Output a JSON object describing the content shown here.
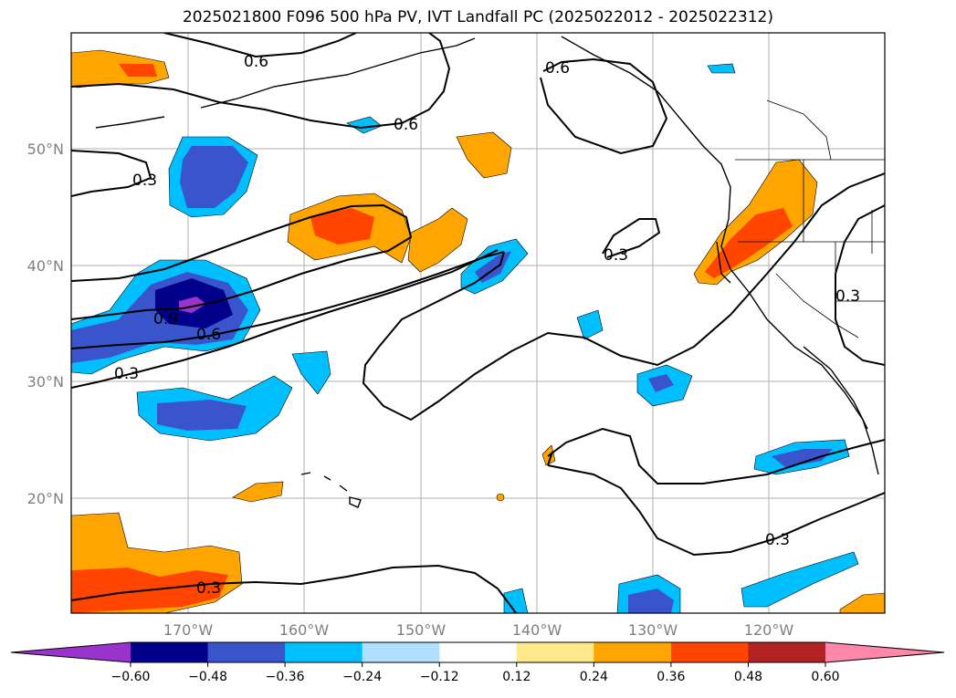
{
  "title": "2025021800 F096 500 hPa PV, IVT Landfall PC (2025022012 - 2025022312)",
  "map": {
    "lat_labels": [
      "50°N",
      "40°N",
      "30°N",
      "20°N"
    ],
    "lon_labels": [
      "170°W",
      "160°W",
      "150°W",
      "140°W",
      "130°W",
      "120°W"
    ],
    "contour_labels": [
      "0.6",
      "0.6",
      "0.6",
      "0.3",
      "0.3",
      "0.9",
      "0.6",
      "0.3",
      "0.3",
      "0.3",
      "0.3"
    ],
    "contour_color": "#000000",
    "grid": true
  },
  "colorbar": {
    "ticks": [
      "−0.60",
      "−0.48",
      "−0.36",
      "−0.24",
      "−0.12",
      "0.12",
      "0.24",
      "0.36",
      "0.48",
      "0.60"
    ],
    "colors": [
      "#9933cc",
      "#00008b",
      "#3a55cc",
      "#00bfff",
      "#b0e0ff",
      "#ffffff",
      "#ffe88a",
      "#ffa500",
      "#ff4500",
      "#b22222",
      "#ff88aa"
    ],
    "extend": "both"
  }
}
